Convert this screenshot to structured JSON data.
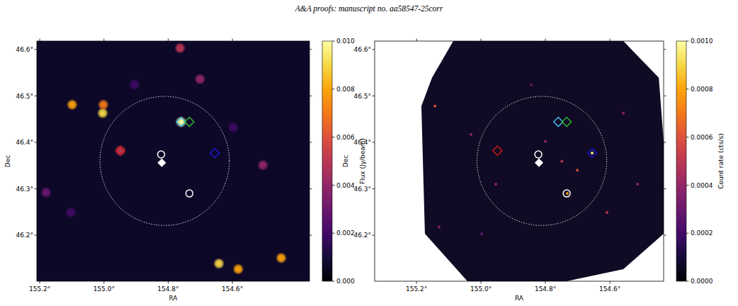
{
  "header": {
    "text": "A&A proofs: manuscript no. aa58547-25corr"
  },
  "chart_data": [
    {
      "type": "image",
      "xlabel": "RA",
      "ylabel": "Dec",
      "xlim": [
        155.209,
        154.36
      ],
      "ylim": [
        46.101,
        46.618
      ],
      "xticks": [
        {
          "value": 155.2,
          "label": "155.2°"
        },
        {
          "value": 155.0,
          "label": "155.0°"
        },
        {
          "value": 154.8,
          "label": "154.8°"
        },
        {
          "value": 154.6,
          "label": "154.6°"
        }
      ],
      "yticks": [
        {
          "value": 46.2,
          "label": "46.2°"
        },
        {
          "value": 46.3,
          "label": "46.3°"
        },
        {
          "value": 46.4,
          "label": "46.4°"
        },
        {
          "value": 46.5,
          "label": "46.5°"
        },
        {
          "value": 46.6,
          "label": "46.6°"
        }
      ],
      "sources": {
        "x": [
          155.099,
          155.004,
          155.002,
          154.76,
          154.949,
          154.701,
          154.763,
          154.505,
          154.642,
          154.582,
          154.448,
          155.18,
          154.905,
          154.598,
          155.103
        ],
        "y": [
          46.481,
          46.463,
          46.481,
          46.444,
          46.382,
          46.536,
          46.603,
          46.351,
          46.139,
          46.127,
          46.151,
          46.292,
          46.524,
          46.432,
          46.249
        ],
        "values": [
          0.008,
          0.009,
          0.007,
          0.01,
          0.005,
          0.004,
          0.005,
          0.004,
          0.009,
          0.008,
          0.008,
          0.003,
          0.002,
          0.002,
          0.002
        ]
      },
      "region": {
        "x": 154.811,
        "y": 46.36,
        "radius": 0.139
      },
      "series": [
        {
          "type": "scatter",
          "marker": "diamond",
          "color": "#3fb8e6",
          "x": [
            154.76
          ],
          "y": [
            46.444
          ]
        },
        {
          "type": "scatter",
          "marker": "diamond",
          "color": "#2fb52f",
          "x": [
            154.734
          ],
          "y": [
            46.444
          ]
        },
        {
          "type": "scatter",
          "marker": "diamond",
          "color": "#1a1ad0",
          "x": [
            154.655
          ],
          "y": [
            46.377
          ]
        },
        {
          "type": "scatter",
          "marker": "diamond",
          "color": "#d01818",
          "x": [
            154.949
          ],
          "y": [
            46.382
          ]
        },
        {
          "type": "scatter",
          "marker": "filled-diamond",
          "color": "#ffffff",
          "x": [
            154.82
          ],
          "y": [
            46.356
          ]
        },
        {
          "type": "scatter",
          "marker": "circle",
          "color": "#ffffff",
          "x": [
            154.822,
            154.734
          ],
          "y": [
            46.374,
            46.29
          ]
        }
      ],
      "colorbar": {
        "label": "Flux (Jy/beam)",
        "range": [
          0,
          0.01
        ],
        "ticks": [
          {
            "value": 0,
            "label": "0.000"
          },
          {
            "value": 0.002,
            "label": "0.002"
          },
          {
            "value": 0.004,
            "label": "0.004"
          },
          {
            "value": 0.006,
            "label": "0.006"
          },
          {
            "value": 0.008,
            "label": "0.008"
          },
          {
            "value": 0.01,
            "label": "0.010"
          }
        ]
      }
    },
    {
      "type": "image",
      "xlabel": "RA",
      "ylabel": "Dec",
      "xlim": [
        155.33,
        154.433
      ],
      "ylim": [
        46.101,
        46.618
      ],
      "xticks": [
        {
          "value": 155.2,
          "label": "155.2°"
        },
        {
          "value": 155.0,
          "label": "155.0°"
        },
        {
          "value": 154.8,
          "label": "154.8°"
        },
        {
          "value": 154.6,
          "label": "154.6°"
        }
      ],
      "yticks": [
        {
          "value": 46.2,
          "label": "46.2°"
        },
        {
          "value": 46.3,
          "label": "46.3°"
        },
        {
          "value": 46.4,
          "label": "46.4°"
        },
        {
          "value": 46.5,
          "label": "46.5°"
        },
        {
          "value": 46.6,
          "label": "46.6°"
        }
      ],
      "footprint": {
        "x": [
          155.086,
          154.558,
          154.448,
          154.433,
          154.433,
          154.558,
          154.734,
          155.042,
          155.174,
          155.185,
          155.152
        ],
        "y": [
          46.618,
          46.618,
          46.539,
          46.402,
          46.203,
          46.127,
          46.101,
          46.101,
          46.203,
          46.478,
          46.539
        ]
      },
      "sources": {
        "x": [
          154.655,
          154.732,
          154.701,
          154.749,
          154.8,
          155.143,
          155.031,
          154.954,
          154.609,
          154.558,
          154.998,
          155.13,
          154.844,
          154.514
        ],
        "y": [
          46.377,
          46.29,
          46.34,
          46.359,
          46.402,
          46.478,
          46.417,
          46.31,
          46.249,
          46.463,
          46.203,
          46.218,
          46.524,
          46.31
        ],
        "values": [
          0.001,
          0.0008,
          0.0006,
          0.0005,
          0.0004,
          0.0006,
          0.0004,
          0.0004,
          0.0005,
          0.0004,
          0.0003,
          0.0004,
          0.0003,
          0.0004
        ]
      },
      "region": {
        "x": 154.811,
        "y": 46.36,
        "radius": 0.139
      },
      "series": [
        {
          "type": "scatter",
          "marker": "diamond",
          "color": "#3fb8e6",
          "x": [
            154.76
          ],
          "y": [
            46.444
          ]
        },
        {
          "type": "scatter",
          "marker": "diamond",
          "color": "#2fb52f",
          "x": [
            154.734
          ],
          "y": [
            46.444
          ]
        },
        {
          "type": "scatter",
          "marker": "diamond",
          "color": "#1a1ad0",
          "x": [
            154.655
          ],
          "y": [
            46.377
          ]
        },
        {
          "type": "scatter",
          "marker": "diamond",
          "color": "#d01818",
          "x": [
            154.949
          ],
          "y": [
            46.382
          ]
        },
        {
          "type": "scatter",
          "marker": "filled-diamond",
          "color": "#ffffff",
          "x": [
            154.82
          ],
          "y": [
            46.356
          ]
        },
        {
          "type": "scatter",
          "marker": "circle",
          "color": "#ffffff",
          "x": [
            154.822,
            154.734
          ],
          "y": [
            46.374,
            46.29
          ]
        }
      ],
      "colorbar": {
        "label": "Count rate (cts/s)",
        "range": [
          0,
          0.001
        ],
        "ticks": [
          {
            "value": 0,
            "label": "0.0000"
          },
          {
            "value": 0.0002,
            "label": "0.0002"
          },
          {
            "value": 0.0004,
            "label": "0.0004"
          },
          {
            "value": 0.0006,
            "label": "0.0006"
          },
          {
            "value": 0.0008,
            "label": "0.0008"
          },
          {
            "value": 0.001,
            "label": "0.0010"
          }
        ]
      }
    }
  ]
}
